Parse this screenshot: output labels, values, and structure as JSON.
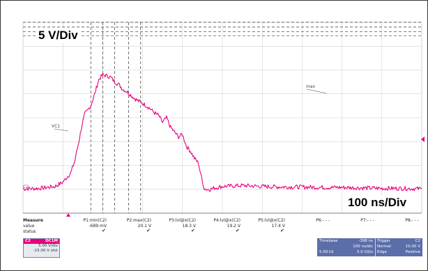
{
  "chart_data": {
    "type": "line",
    "title": "",
    "vertical_scale_label": "5 V/Div",
    "horizontal_scale_label": "100 ns/Div",
    "xlabel": "",
    "ylabel": "",
    "xlim": [
      -500,
      500
    ],
    "ylim": [
      -20,
      20
    ],
    "grid": true,
    "series": [
      {
        "color": "#e6007a",
        "x": [
          -500,
          -460,
          -420,
          -400,
          -380,
          -370,
          -360,
          -352,
          -345,
          -338,
          -330,
          -320,
          -310,
          -300,
          -290,
          -280,
          -270,
          -260,
          -250,
          -240,
          -230,
          -220,
          -210,
          -200,
          -190,
          -180,
          -170,
          -160,
          -150,
          -140,
          -130,
          -120,
          -110,
          -100,
          -90,
          -80,
          -70,
          -60,
          -55,
          -50,
          -45,
          -40,
          -30,
          -20,
          0,
          50,
          100,
          150,
          200,
          250,
          300,
          350,
          400,
          450,
          500
        ],
        "y": [
          -14.9,
          -14.8,
          -14.4,
          -13.5,
          -11.5,
          -9.0,
          -5.0,
          -1.5,
          0.8,
          1.5,
          2.5,
          5.0,
          8.0,
          9.0,
          8.8,
          8.5,
          7.5,
          7.0,
          6.0,
          5.5,
          4.8,
          4.0,
          3.5,
          3.0,
          2.5,
          1.8,
          1.0,
          0.5,
          -1.0,
          0.0,
          -2.0,
          -3.0,
          -4.0,
          -3.5,
          -6.0,
          -7.0,
          -8.5,
          -9.5,
          -11.5,
          -13.5,
          -14.8,
          -15.0,
          -15.0,
          -14.7,
          -14.4,
          -14.2,
          -14.4,
          -14.5,
          -14.5,
          -14.6,
          -14.6,
          -14.7,
          -14.8,
          -14.8,
          -14.9
        ]
      }
    ],
    "cursor_labels": {
      "upper": "max",
      "lower": "VC1"
    },
    "channel_marker": "C2"
  },
  "measure_panel": {
    "row_labels": [
      "Measure",
      "value",
      "status"
    ],
    "columns": [
      {
        "name": "P1:min(C2)",
        "value": "-689 mV",
        "status": "✔"
      },
      {
        "name": "P2:max(C2)",
        "value": "20.1 V",
        "status": "✔"
      },
      {
        "name": "P3:lvl@x(C2)",
        "value": "18.3 V",
        "status": "✔"
      },
      {
        "name": "P4:lvl@x(C2)",
        "value": "19.2 V",
        "status": "✔"
      },
      {
        "name": "P5:lvl@x(C2)",
        "value": "17.4 V",
        "status": "✔"
      },
      {
        "name": "P6:- - -",
        "value": "",
        "status": ""
      },
      {
        "name": "P7:- - -",
        "value": "",
        "status": ""
      },
      {
        "name": "P8:- - -",
        "value": "",
        "status": ""
      }
    ]
  },
  "channel_box": {
    "name": "C2",
    "coupling": "DC1M",
    "scale": "5.00 V/div",
    "offset": "-15.00 V ofst"
  },
  "timebase_box": {
    "timebase_label": "Timebase",
    "timebase_delay": "-398 ns",
    "timebase_scale": "100 ns/div",
    "sample_count": "5.00 kS",
    "sample_rate": "5.0 GS/s",
    "trigger_label": "Trigger",
    "trigger_channel": "C2",
    "trigger_mode": "Normal",
    "trigger_level": "10.00 V",
    "trigger_type": "Edge",
    "trigger_slope": "Positive"
  },
  "colors": {
    "trace": "#e6007a",
    "grid": "#c8c8c8",
    "panel_blue": "#5b6eaa"
  }
}
